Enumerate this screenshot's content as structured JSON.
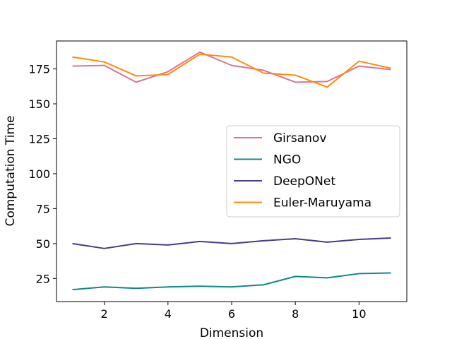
{
  "chart_data": {
    "type": "line",
    "title": "",
    "xlabel": "Dimension",
    "ylabel": "Computation Time",
    "xlim": [
      0.5,
      11.5
    ],
    "ylim": [
      8.5,
      195
    ],
    "xticks": [
      2,
      4,
      6,
      8,
      10
    ],
    "yticks": [
      25,
      50,
      75,
      100,
      125,
      150,
      175
    ],
    "grid": false,
    "legend_position": "center-right",
    "x": [
      1,
      2,
      3,
      4,
      5,
      6,
      7,
      8,
      9,
      10,
      11
    ],
    "series": [
      {
        "name": "Girsanov",
        "color": "#e0728f",
        "values": [
          177,
          177.5,
          165.5,
          173,
          187,
          177.5,
          174,
          165.5,
          166,
          177,
          174.5
        ]
      },
      {
        "name": "NGO",
        "color": "#0d8a87",
        "values": [
          17,
          19,
          18,
          19,
          19.5,
          19,
          20.5,
          26.5,
          25.5,
          28.5,
          29
        ]
      },
      {
        "name": "DeepONet",
        "color": "#483c88",
        "values": [
          50,
          46.5,
          50,
          49,
          51.5,
          50,
          52,
          53.5,
          51,
          53,
          54
        ]
      },
      {
        "name": "Euler-Maruyama",
        "color": "#ff8c0a",
        "values": [
          183.5,
          180,
          170,
          171,
          185.5,
          183.5,
          172,
          170.5,
          162,
          180.5,
          175.5
        ]
      }
    ]
  }
}
